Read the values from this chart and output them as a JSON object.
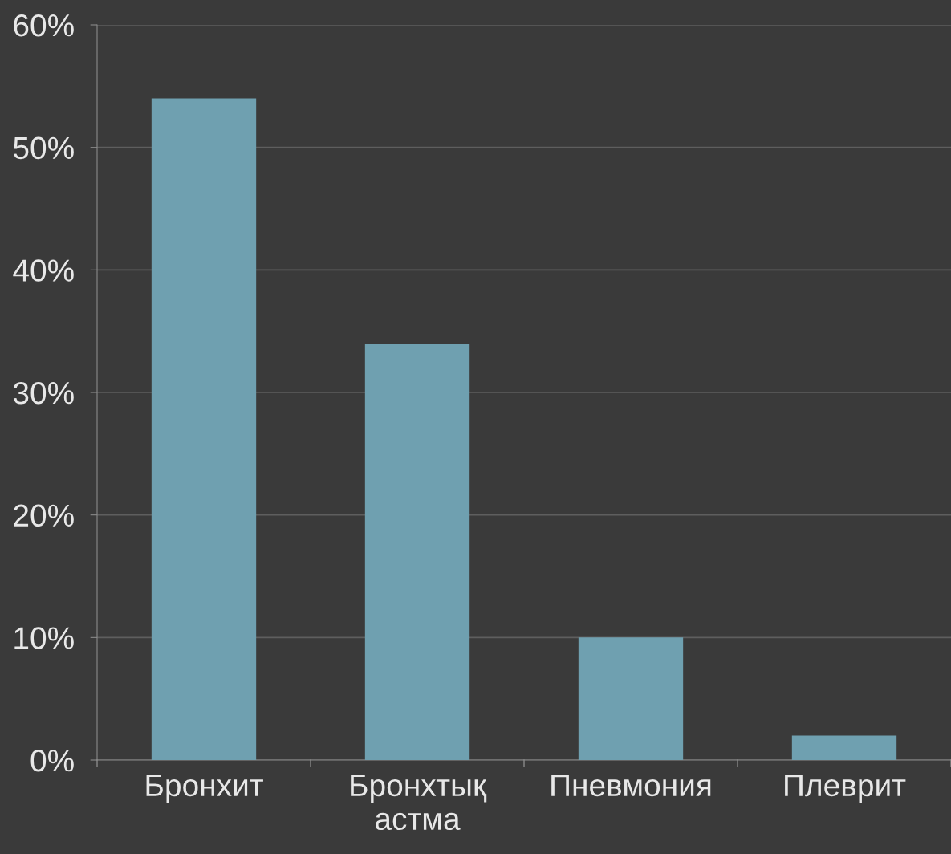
{
  "chart_data": {
    "type": "bar",
    "categories": [
      "Бронхит",
      "Бронхтық\nастма",
      "Пневмония",
      "Плеврит"
    ],
    "values": [
      54,
      34,
      10,
      2
    ],
    "color": "#6fa0b0",
    "ylim": [
      0,
      60
    ],
    "yticks": [
      {
        "value": 0,
        "label": "0%"
      },
      {
        "value": 10,
        "label": "10%"
      },
      {
        "value": 20,
        "label": "20%"
      },
      {
        "value": 30,
        "label": "30%"
      },
      {
        "value": 40,
        "label": "40%"
      },
      {
        "value": 50,
        "label": "50%"
      },
      {
        "value": 60,
        "label": "60%"
      }
    ],
    "grid": "y"
  }
}
